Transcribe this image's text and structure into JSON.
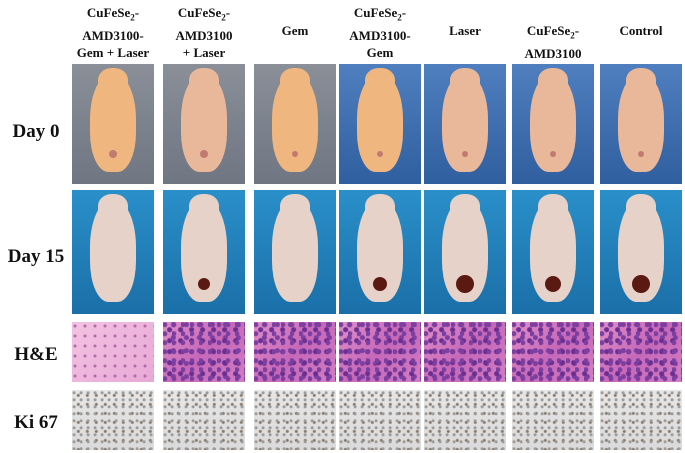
{
  "columns": [
    {
      "line1_pre": "CuFeSe",
      "line1_sub": "2",
      "line1_post": "-",
      "line2": "AMD3100-",
      "line3": "Gem + Laser"
    },
    {
      "line1_pre": "CuFeSe",
      "line1_sub": "2",
      "line1_post": "-",
      "line2": "AMD3100",
      "line3": "+ Laser"
    },
    {
      "line1_pre": "Gem",
      "line1_sub": "",
      "line1_post": "",
      "line2": "",
      "line3": ""
    },
    {
      "line1_pre": "CuFeSe",
      "line1_sub": "2",
      "line1_post": "-",
      "line2": "AMD3100-",
      "line3": "Gem"
    },
    {
      "line1_pre": "Laser",
      "line1_sub": "",
      "line1_post": "",
      "line2": "",
      "line3": ""
    },
    {
      "line1_pre": "CuFeSe",
      "line1_sub": "2",
      "line1_post": "-",
      "line2": "AMD3100",
      "line3": ""
    },
    {
      "line1_pre": "Control",
      "line1_sub": "",
      "line1_post": "",
      "line2": "",
      "line3": ""
    }
  ],
  "rows": {
    "day0": "Day 0",
    "day15": "Day 15",
    "he": "H&E",
    "ki67": "Ki 67"
  },
  "colors": {
    "background": "#ffffff",
    "mouse_skin": "#e9b79a",
    "tumor": "#5a1a12",
    "photo_blue": "#2a8fc9"
  }
}
